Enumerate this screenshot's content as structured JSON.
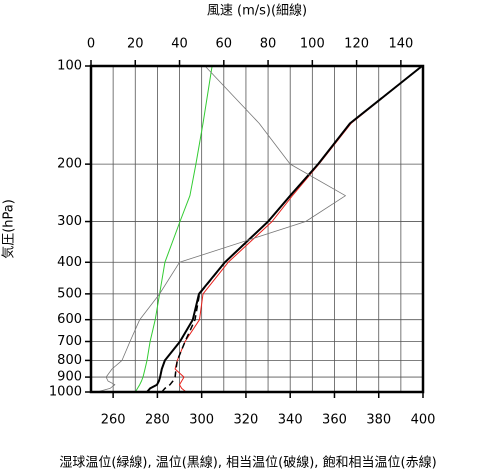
{
  "chart_data": {
    "type": "sounding",
    "title": "風速 (m/s)(細線)",
    "caption": "湿球温位(緑線), 温位(黒線), 相当温位(破線), 飽和相当温位(赤線)",
    "ylabel": "気圧(hPa)",
    "y_log": true,
    "ylim": [
      1000,
      100
    ],
    "yticks": [
      100,
      200,
      300,
      400,
      500,
      600,
      700,
      800,
      900,
      1000
    ],
    "xlim": [
      250,
      400
    ],
    "xticks": [
      260,
      280,
      300,
      320,
      340,
      360,
      380,
      400
    ],
    "x2lim": [
      0,
      150
    ],
    "x2ticks": [
      0,
      20,
      40,
      60,
      80,
      100,
      120,
      140
    ],
    "grid": true,
    "pressure": [
      1000,
      975,
      950,
      925,
      900,
      850,
      800,
      700,
      600,
      500,
      400,
      300,
      250,
      200,
      150,
      100
    ],
    "series": [
      {
        "name": "湿球温位",
        "color": "#33cc33",
        "width": 1,
        "dash": false,
        "values": [
          270,
          271,
          272,
          272.8,
          273.5,
          274.4,
          275.3,
          276.7,
          279,
          281,
          283.4,
          290.2,
          294.7,
          297.4,
          300.6,
          304.7
        ]
      },
      {
        "name": "飽和相当温位",
        "color": "#e8211c",
        "width": 1,
        "dash": false,
        "values": [
          293,
          291,
          290,
          291,
          292,
          288,
          289,
          292.5,
          299,
          300.6,
          312,
          331.8,
          341,
          353,
          367.5,
          399.6
        ]
      },
      {
        "name": "相当温位",
        "color": "#000000",
        "width": 1.5,
        "dash": true,
        "values": [
          282,
          283.4,
          285.7,
          287,
          288,
          288.4,
          289,
          292.5,
          297,
          299,
          310.5,
          330,
          340,
          352.6,
          367,
          399.6
        ]
      },
      {
        "name": "温位",
        "color": "#000000",
        "width": 2,
        "dash": false,
        "values": [
          275.3,
          276.7,
          279.8,
          280.7,
          281.2,
          282,
          283.4,
          290.2,
          296,
          298.8,
          310.5,
          330,
          340,
          352.6,
          367,
          399.6
        ]
      },
      {
        "name": "風速",
        "color": "#777777",
        "width": 0.8,
        "dash": false,
        "axis": "x2",
        "values": [
          2.7,
          8.6,
          10.8,
          7.7,
          6.8,
          9.5,
          14,
          17.6,
          22,
          31,
          40,
          97,
          115,
          90,
          76,
          51.5
        ]
      }
    ]
  }
}
